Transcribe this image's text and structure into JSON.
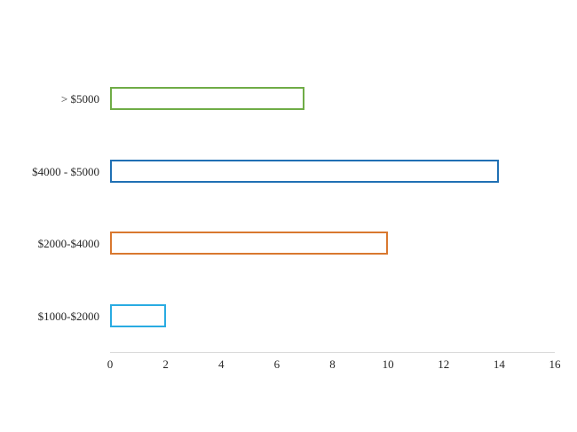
{
  "chart_data": {
    "type": "bar",
    "orientation": "horizontal",
    "title": "",
    "xlabel": "",
    "ylabel": "",
    "categories": [
      "> $5000",
      "$4000 - $5000",
      "$2000-$4000",
      "$1000-$2000"
    ],
    "values": [
      7,
      14,
      10,
      2
    ],
    "bar_border_colors": [
      "#6FAC46",
      "#2070B4",
      "#D9782F",
      "#29ABE2"
    ],
    "bar_fill_color": "#FFFFFF",
    "xlim": [
      0,
      16
    ],
    "x_ticks": [
      0,
      2,
      4,
      6,
      8,
      10,
      12,
      14,
      16
    ],
    "grid": false,
    "legend": false,
    "axis_line_color": "#D9D9D9",
    "text_color": "#262626"
  }
}
